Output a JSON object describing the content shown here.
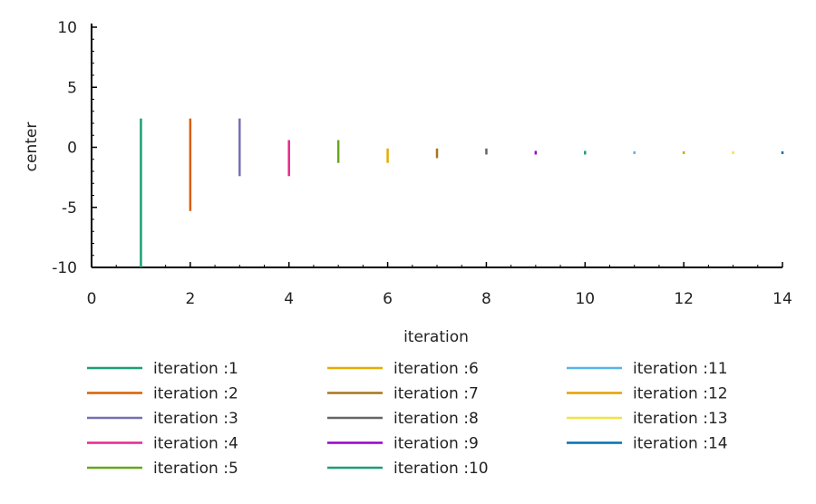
{
  "chart_data": {
    "type": "line",
    "title": "",
    "xlabel": "iteration",
    "ylabel": "center",
    "xlim": [
      0,
      14
    ],
    "ylim": [
      -10,
      10
    ],
    "xticks": [
      0,
      2,
      4,
      6,
      8,
      10,
      12,
      14
    ],
    "yticks": [
      10,
      5,
      0,
      -5,
      -10
    ],
    "grid": false,
    "legend_position": "bottom",
    "series": [
      {
        "name": "iteration :1",
        "x": 1,
        "y_min": -10,
        "y_max": 2.4,
        "color": "#1b9e77"
      },
      {
        "name": "iteration :2",
        "x": 2,
        "y_min": -5.3,
        "y_max": 2.4,
        "color": "#d95f02"
      },
      {
        "name": "iteration :3",
        "x": 3,
        "y_min": -2.4,
        "y_max": 2.4,
        "color": "#7570b3"
      },
      {
        "name": "iteration :4",
        "x": 4,
        "y_min": -2.4,
        "y_max": 0.6,
        "color": "#e7298a"
      },
      {
        "name": "iteration :5",
        "x": 5,
        "y_min": -1.3,
        "y_max": 0.6,
        "color": "#66a61e"
      },
      {
        "name": "iteration :6",
        "x": 6,
        "y_min": -1.3,
        "y_max": -0.1,
        "color": "#e6ab02"
      },
      {
        "name": "iteration :7",
        "x": 7,
        "y_min": -0.9,
        "y_max": -0.1,
        "color": "#a6761d"
      },
      {
        "name": "iteration :8",
        "x": 8,
        "y_min": -0.6,
        "y_max": -0.1,
        "color": "#666666"
      },
      {
        "name": "iteration :9",
        "x": 9,
        "y_min": -0.6,
        "y_max": -0.3,
        "color": "#9900cc"
      },
      {
        "name": "iteration :10",
        "x": 10,
        "y_min": -0.6,
        "y_max": -0.3,
        "color": "#1b9e77"
      },
      {
        "name": "iteration :11",
        "x": 11,
        "y_min": -0.55,
        "y_max": -0.35,
        "color": "#56b4e9"
      },
      {
        "name": "iteration :12",
        "x": 12,
        "y_min": -0.55,
        "y_max": -0.35,
        "color": "#e69f00"
      },
      {
        "name": "iteration :13",
        "x": 13,
        "y_min": -0.55,
        "y_max": -0.35,
        "color": "#f0e442"
      },
      {
        "name": "iteration :14",
        "x": 14,
        "y_min": -0.55,
        "y_max": -0.35,
        "color": "#0072b2"
      }
    ]
  }
}
